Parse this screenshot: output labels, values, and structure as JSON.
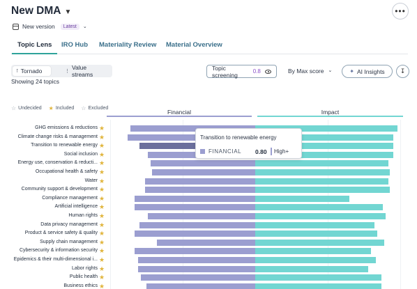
{
  "header": {
    "title": "New DMA",
    "version_label": "New version",
    "version_badge": "Latest",
    "more_icon": "more-horizontal-icon"
  },
  "tabs": [
    {
      "label": "Topic Lens",
      "active": true
    },
    {
      "label": "IRO Hub",
      "active": false
    },
    {
      "label": "Materiality Review",
      "active": false
    },
    {
      "label": "Material Overview",
      "active": false
    }
  ],
  "view_toggle": {
    "tornado_label": "Tornado",
    "value_streams_label": "Value streams",
    "selected": "Tornado"
  },
  "showing_label": "Showing 24 topics",
  "toolbar": {
    "topic_screening_label": "Topic screening",
    "topic_screening_value": "0.8",
    "sort_label": "By Max score",
    "ai_insights_label": "AI Insights"
  },
  "legend": {
    "undecided": "Undecided",
    "included": "Included",
    "excluded": "Excluded"
  },
  "columns": {
    "financial": "Financial",
    "impact": "Impact"
  },
  "colors": {
    "financial": "#9b9ed0",
    "financial_highlight": "#6b6f9c",
    "impact": "#72d6d2",
    "accent": "#2fa39a",
    "included_star": "#e0b43a"
  },
  "chart_data": {
    "type": "bar",
    "categories": [
      "GHG emissions & reductions",
      "Climate change risks & management",
      "Transition to renewable energy",
      "Social inclusion",
      "Energy use, conservation & reducti...",
      "Occupational health & safety",
      "Water",
      "Community support & development",
      "Compliance management",
      "Artificial intelligence",
      "Human rights",
      "Data privacy management",
      "Product & service safety & quality",
      "Supply chain management",
      "Cybersecurity & information security",
      "Epidemics & their multi-dimensional i...",
      "Labor rights",
      "Public health",
      "Business ethics"
    ],
    "series": [
      {
        "name": "Financial",
        "values": [
          0.86,
          0.88,
          0.8,
          0.74,
          0.72,
          0.71,
          0.76,
          0.76,
          0.83,
          0.83,
          0.74,
          0.8,
          0.83,
          0.68,
          0.83,
          0.81,
          0.81,
          0.79,
          0.75
        ]
      },
      {
        "name": "Impact",
        "values": [
          0.98,
          0.95,
          0.95,
          0.95,
          0.92,
          0.93,
          0.92,
          0.93,
          0.65,
          0.88,
          0.9,
          0.82,
          0.84,
          0.89,
          0.8,
          0.83,
          0.78,
          0.87,
          0.87
        ]
      }
    ],
    "included": [
      true,
      true,
      true,
      true,
      true,
      true,
      true,
      true,
      true,
      true,
      true,
      true,
      true,
      true,
      true,
      true,
      true,
      true,
      true
    ],
    "xlim": [
      0,
      1
    ]
  },
  "tooltip": {
    "title": "Transition to renewable energy",
    "series_label": "FINANCIAL",
    "value": "0.80",
    "level": "High+"
  }
}
